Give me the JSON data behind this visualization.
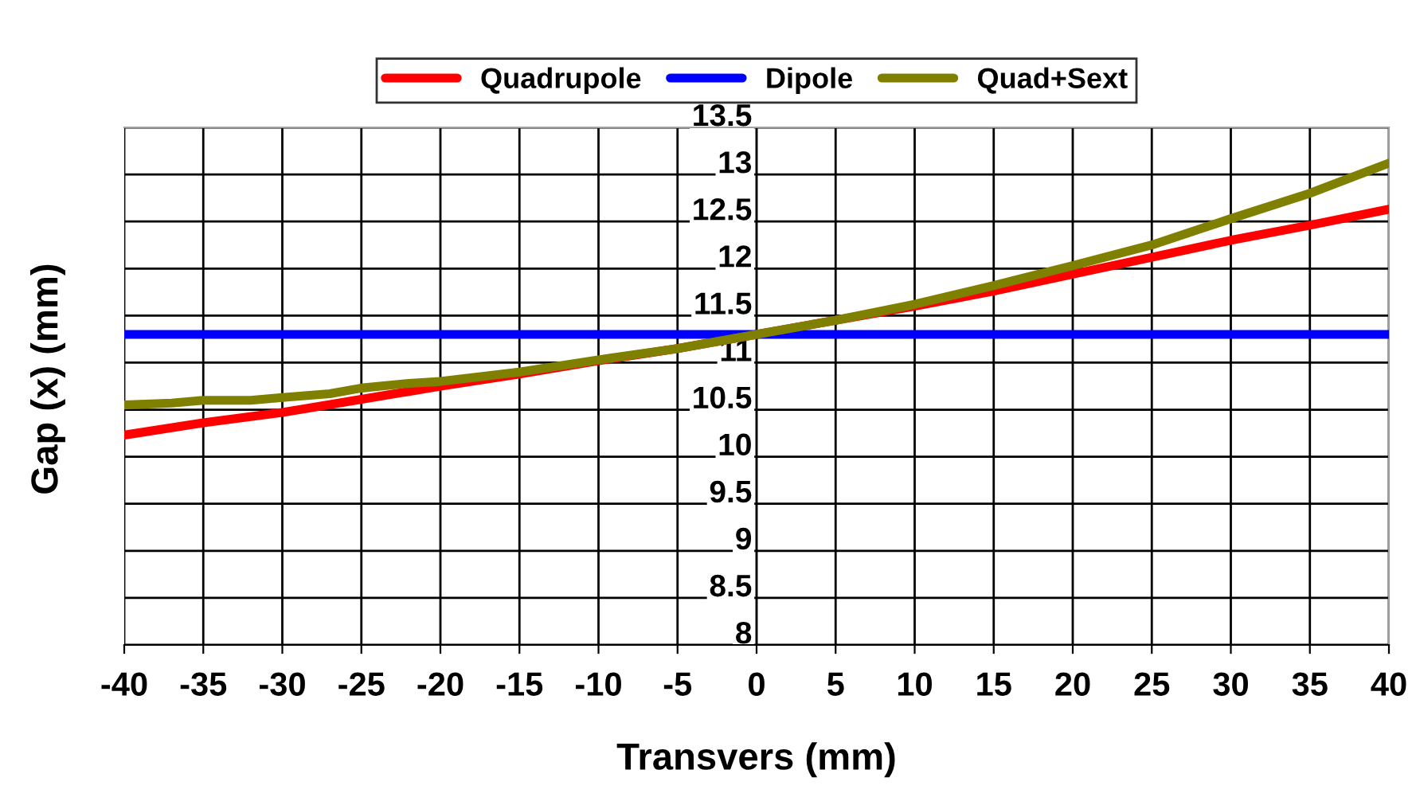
{
  "chart_data": {
    "type": "line",
    "xlabel": "Transvers (mm)",
    "ylabel": "Gap (x) (mm)",
    "xlim": [
      -40,
      40
    ],
    "xticks": [
      -40,
      -35,
      -30,
      -25,
      -20,
      -15,
      -10,
      -5,
      0,
      5,
      10,
      15,
      20,
      25,
      30,
      35,
      40
    ],
    "ylim": [
      8,
      13.5
    ],
    "yticks": [
      8,
      8.5,
      9,
      9.5,
      10,
      10.5,
      11,
      11.5,
      12,
      12.5,
      13,
      13.5
    ],
    "grid": true,
    "legend": "top",
    "line_style": "solid",
    "series": [
      {
        "name": "Quadrupole",
        "color": "#ff0000",
        "x": [
          -40,
          -35,
          -30,
          -25,
          -20,
          -15,
          -10,
          -5,
          0,
          5,
          10,
          15,
          20,
          25,
          30,
          35,
          40
        ],
        "values": [
          10.23,
          10.36,
          10.47,
          10.61,
          10.75,
          10.88,
          11.02,
          11.15,
          11.3,
          11.45,
          11.6,
          11.76,
          11.94,
          12.12,
          12.3,
          12.46,
          12.63
        ]
      },
      {
        "name": "Dipole",
        "color": "#0000ff",
        "x": [
          -40,
          40
        ],
        "values": [
          11.3,
          11.3
        ]
      },
      {
        "name": "Quad+Sext",
        "color": "#808000",
        "x": [
          -40,
          -37,
          -35,
          -32,
          -30,
          -27,
          -25,
          -22,
          -20,
          -15,
          -10,
          -5,
          0,
          5,
          10,
          15,
          20,
          25,
          30,
          35,
          40
        ],
        "values": [
          10.55,
          10.57,
          10.6,
          10.6,
          10.63,
          10.67,
          10.73,
          10.78,
          10.8,
          10.9,
          11.03,
          11.15,
          11.3,
          11.45,
          11.62,
          11.82,
          12.03,
          12.25,
          12.53,
          12.8,
          13.12
        ]
      }
    ]
  }
}
